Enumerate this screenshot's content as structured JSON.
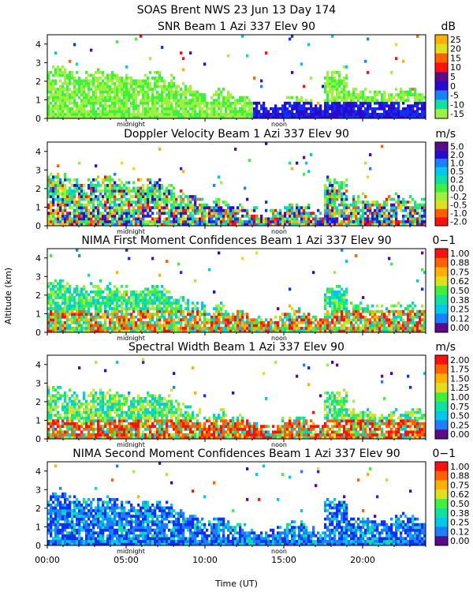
{
  "page_title": "SOAS Brent NWS  23 Jun 13 Day 174",
  "colors": {
    "palette": [
      "#5a0a8a",
      "#2a0ad0",
      "#1030f0",
      "#1a80ff",
      "#00c8e8",
      "#10e0a0",
      "#40f040",
      "#a0f040",
      "#e0e020",
      "#ffb000",
      "#ff6000",
      "#ff1010"
    ]
  },
  "chart_data": [
    {
      "type": "heatmap",
      "title": "SNR Beam 1 Azi 337 Elev 90",
      "unit": "dB",
      "yticks": [
        "4",
        "3",
        "2",
        "1",
        "0"
      ],
      "ylim": [
        0,
        4.5
      ],
      "xlim": [
        0,
        24
      ],
      "markers": [
        "midnight",
        "noon"
      ],
      "colorbar": {
        "labels": [
          "25",
          "20",
          "15",
          "10",
          "5",
          "0",
          "-5",
          "-10",
          "-15"
        ],
        "colors": [
          "#ffb000",
          "#e0e020",
          "#ff6000",
          "#ff1010",
          "#5a0a8a",
          "#2a0ad0",
          "#1a80ff",
          "#10e0a0",
          "#a0f040"
        ]
      },
      "pattern": "snr"
    },
    {
      "type": "heatmap",
      "title": "Doppler Velocity Beam 1 Azi 337 Elev 90",
      "unit": "m/s",
      "yticks": [
        "4",
        "3",
        "2",
        "1",
        "0"
      ],
      "ylim": [
        0,
        4.5
      ],
      "xlim": [
        0,
        24
      ],
      "markers": [
        "midnight",
        "noon"
      ],
      "colorbar": {
        "labels": [
          "5.0",
          "2.0",
          "1.0",
          "0.5",
          "0.2",
          "0.0",
          "-0.2",
          "-0.5",
          "-1.0",
          "-2.0"
        ],
        "colors": [
          "#5a0a8a",
          "#2a0ad0",
          "#1a80ff",
          "#00c8e8",
          "#10e0a0",
          "#40f040",
          "#a0f040",
          "#e0e020",
          "#ff6000",
          "#ff1010"
        ]
      },
      "pattern": "doppler"
    },
    {
      "type": "heatmap",
      "title": "NIMA First Moment Confidences Beam 1 Azi 337 Elev 90",
      "unit": "0−1",
      "yticks": [
        "4",
        "3",
        "2",
        "1",
        "0"
      ],
      "ylim": [
        0,
        4.5
      ],
      "xlim": [
        0,
        24
      ],
      "markers": [
        "midnight",
        "noon"
      ],
      "colorbar": {
        "labels": [
          "1.00",
          "0.88",
          "0.75",
          "0.62",
          "0.50",
          "0.38",
          "0.25",
          "0.12",
          "0.00"
        ],
        "colors": [
          "#ff1010",
          "#ff6000",
          "#ffb000",
          "#e0e020",
          "#40f040",
          "#10e0a0",
          "#00c8e8",
          "#1a80ff",
          "#5a0a8a"
        ]
      },
      "pattern": "conf1"
    },
    {
      "type": "heatmap",
      "title": "Spectral Width Beam 1 Azi 337 Elev 90",
      "unit": "m/s",
      "yticks": [
        "4",
        "3",
        "2",
        "1",
        "0"
      ],
      "ylim": [
        0,
        4.5
      ],
      "xlim": [
        0,
        24
      ],
      "markers": [
        "midnight",
        "noon"
      ],
      "colorbar": {
        "labels": [
          "2.00",
          "1.75",
          "1.50",
          "1.25",
          "1.00",
          "0.75",
          "0.50",
          "0.25",
          "0.00"
        ],
        "colors": [
          "#ff1010",
          "#ff6000",
          "#ffb000",
          "#e0e020",
          "#40f040",
          "#10e0a0",
          "#00c8e8",
          "#1a80ff",
          "#5a0a8a"
        ]
      },
      "pattern": "width"
    },
    {
      "type": "heatmap",
      "title": "NIMA Second Moment Confidences Beam 1 Azi 337 Elev 90",
      "unit": "0−1",
      "yticks": [
        "4",
        "3",
        "2",
        "1",
        "0"
      ],
      "ylim": [
        0,
        4.5
      ],
      "xlim": [
        0,
        24
      ],
      "markers": [
        "midnight",
        "noon"
      ],
      "colorbar": {
        "labels": [
          "1.00",
          "0.88",
          "0.75",
          "0.62",
          "0.50",
          "0.38",
          "0.25",
          "0.12",
          "0.00"
        ],
        "colors": [
          "#ff1010",
          "#ff6000",
          "#ffb000",
          "#e0e020",
          "#40f040",
          "#10e0a0",
          "#00c8e8",
          "#1a80ff",
          "#5a0a8a"
        ]
      },
      "pattern": "conf2"
    }
  ],
  "x_axis": {
    "ticks": [
      "00:00",
      "05:00",
      "10:00",
      "15:00",
      "20:00"
    ],
    "tick_values": [
      0,
      5,
      10,
      15,
      20
    ],
    "label": "Time (UT)"
  },
  "y_axis": {
    "label": "Altitude (km)"
  }
}
